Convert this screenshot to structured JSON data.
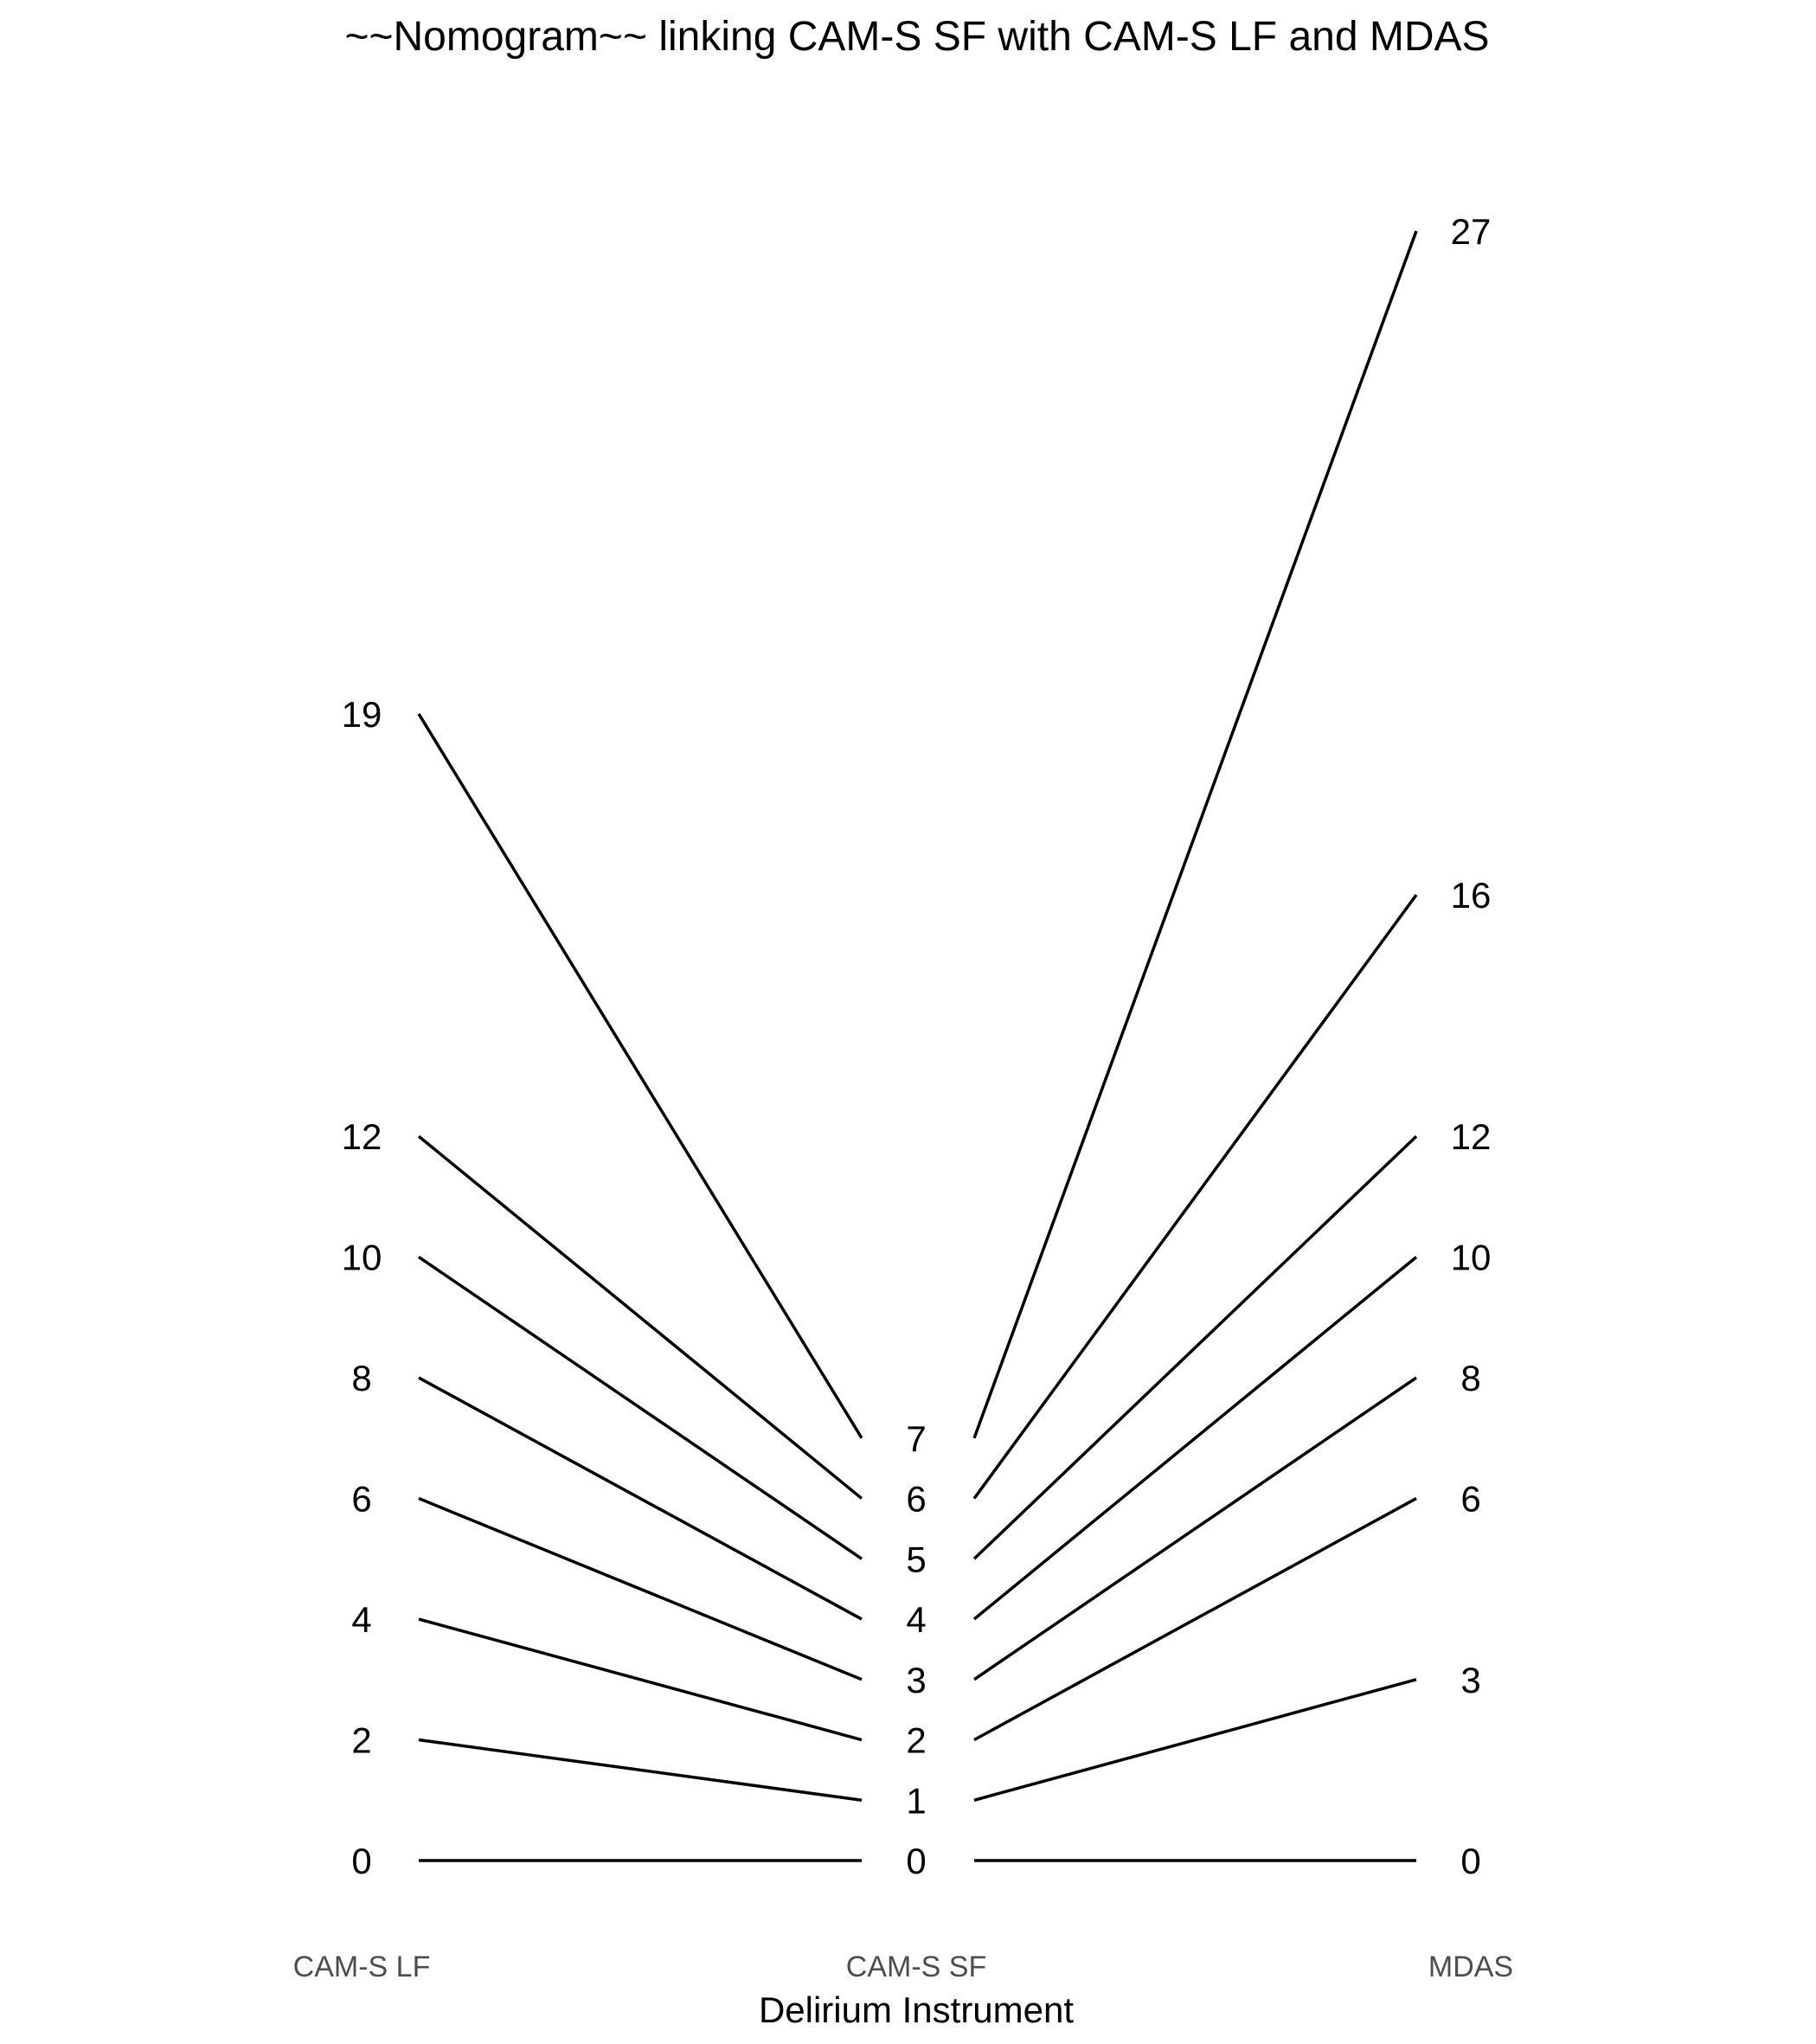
{
  "chart_data": {
    "type": "line",
    "title": "~~Nomogram~~ linking CAM-S SF with CAM-S LF and MDAS",
    "xlabel": "Delirium Instrument",
    "ylabel": "",
    "categories": [
      "CAM-S LF",
      "CAM-S SF",
      "MDAS"
    ],
    "ylim": [
      0,
      27
    ],
    "grid": false,
    "legend": "none",
    "scores": {
      "CAM-S LF": [
        0,
        2,
        4,
        6,
        8,
        10,
        12,
        19
      ],
      "CAM-S SF": [
        0,
        1,
        2,
        3,
        4,
        5,
        6,
        7
      ],
      "MDAS": [
        0,
        3,
        6,
        8,
        10,
        12,
        16,
        27
      ]
    },
    "links": [
      {
        "lf": 0,
        "sf": 0,
        "mdas": 0
      },
      {
        "lf": 2,
        "sf": 1,
        "mdas": 3
      },
      {
        "lf": 4,
        "sf": 2,
        "mdas": 6
      },
      {
        "lf": 6,
        "sf": 3,
        "mdas": 8
      },
      {
        "lf": 8,
        "sf": 4,
        "mdas": 10
      },
      {
        "lf": 10,
        "sf": 5,
        "mdas": 12
      },
      {
        "lf": 12,
        "sf": 6,
        "mdas": 16
      },
      {
        "lf": 19,
        "sf": 7,
        "mdas": 27
      }
    ],
    "line_color": "#000000"
  }
}
